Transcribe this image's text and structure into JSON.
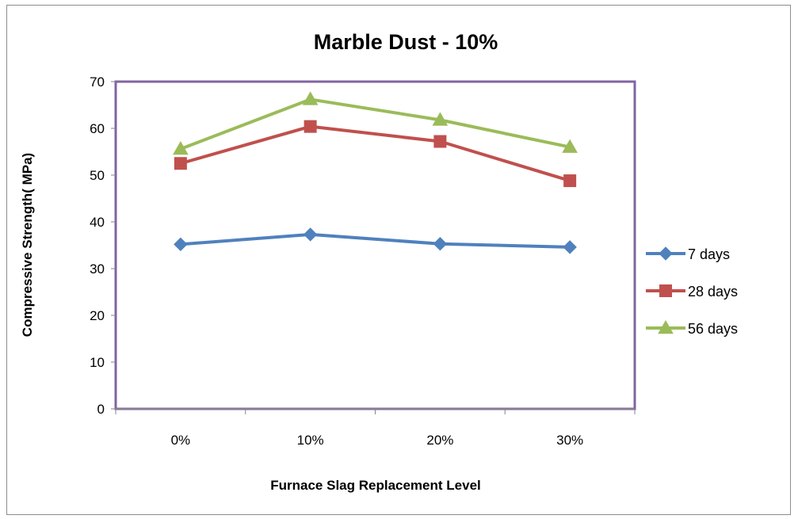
{
  "chart_data": {
    "type": "line",
    "title": "Marble Dust - 10%",
    "xlabel": "Furnace Slag Replacement Level",
    "ylabel": "Compressive Strength( MPa)",
    "categories": [
      "0%",
      "10%",
      "20%",
      "30%"
    ],
    "ylim": [
      0,
      70
    ],
    "yticks": [
      0,
      10,
      20,
      30,
      40,
      50,
      60,
      70
    ],
    "grid": false,
    "legend_position": "right",
    "series": [
      {
        "name": "7 days",
        "values": [
          35.2,
          37.3,
          35.3,
          34.6
        ],
        "color": "#4f81bd",
        "marker": "diamond"
      },
      {
        "name": "28 days",
        "values": [
          52.5,
          60.4,
          57.2,
          48.8
        ],
        "color": "#c0504d",
        "marker": "square"
      },
      {
        "name": "56 days",
        "values": [
          55.6,
          66.2,
          61.8,
          56.0
        ],
        "color": "#9bbb59",
        "marker": "triangle"
      }
    ],
    "plot_border_color": "#8064a2"
  }
}
